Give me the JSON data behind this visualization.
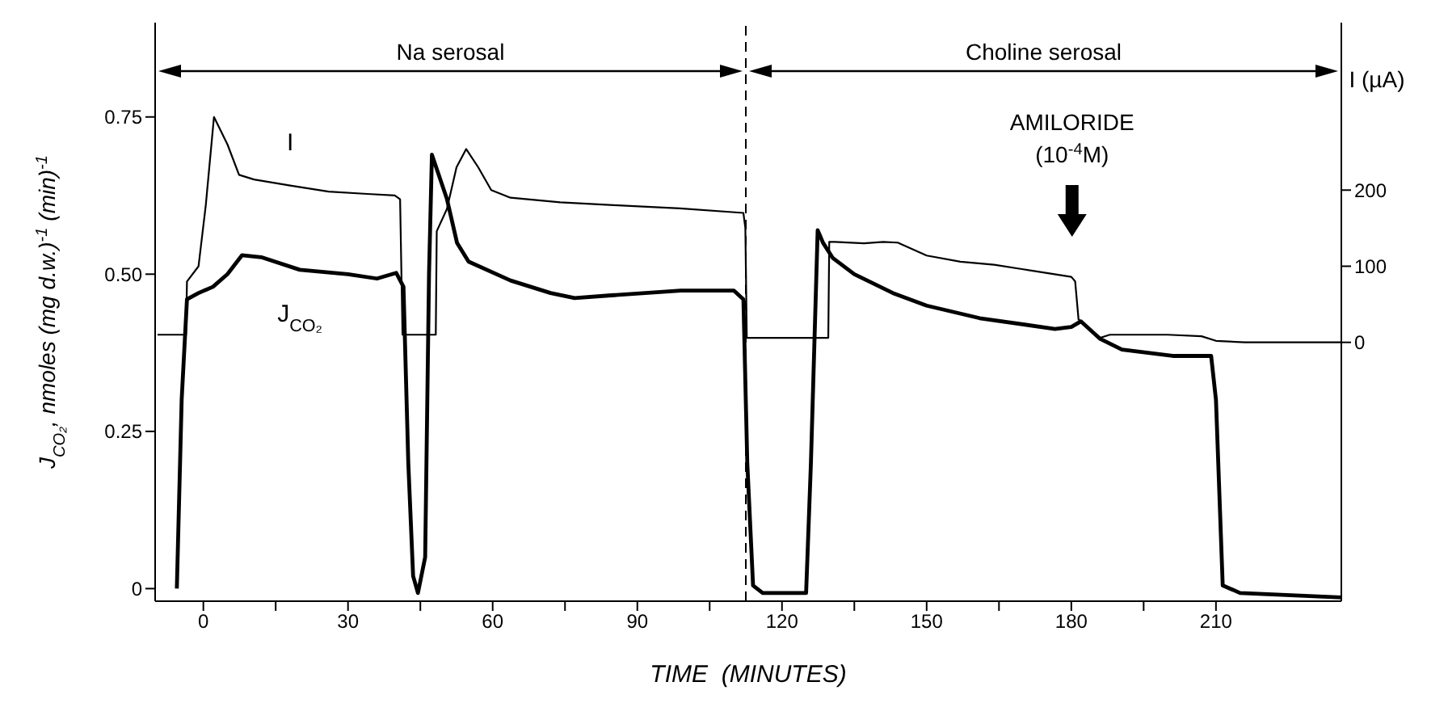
{
  "chart_data": {
    "type": "line",
    "xlabel": "TIME  (MINUTES)",
    "ylabel": "J$_{CO₂}$, nmoles (mg d.w.)$^{-1}$ (min)$^{-1}$",
    "y2label": "I (µA)",
    "xlim": [
      -10,
      236
    ],
    "xticks": [
      0,
      {
        "value": 15,
        "label": null
      },
      30,
      {
        "value": 45,
        "label": null
      },
      60,
      {
        "value": 75,
        "label": null
      },
      90,
      {
        "value": 105,
        "label": null
      },
      120,
      {
        "value": 135,
        "label": null
      },
      150,
      {
        "value": 165,
        "label": null
      },
      180,
      {
        "value": 195,
        "label": null
      },
      210
    ],
    "ylim": [
      -0.02,
      0.9
    ],
    "yticks": [
      0,
      0.25,
      {
        "value": 0.5,
        "label": "0.50"
      },
      0.75
    ],
    "y2lim": [
      -340,
      420
    ],
    "y2ticks": [
      0,
      100,
      200
    ],
    "grid": false,
    "legend": false,
    "marker": "none",
    "line_style": "solid",
    "series": [
      {
        "name": "I",
        "color": "#000000",
        "axis": "y2",
        "x": [
          -9.5,
          -3.6,
          -3.4,
          -1,
          0.5,
          2.2,
          5,
          7.4,
          10.5,
          18,
          26,
          34,
          39.7,
          40.8,
          41.3,
          48.2,
          48.4,
          50.5,
          52.5,
          54.5,
          57,
          59.7,
          63.7,
          74,
          86,
          98.8,
          112,
          112.4,
          112.7,
          129.6,
          129.8,
          131,
          137,
          141,
          144,
          150,
          157,
          164,
          170,
          176,
          180,
          180.8,
          181.5,
          186,
          188,
          200,
          207,
          210,
          216,
          236
        ],
        "values": [
          10,
          10,
          80,
          100,
          180,
          296,
          260,
          220,
          214,
          206,
          198,
          195,
          193,
          188,
          10,
          10,
          146,
          175,
          230,
          254,
          230,
          200,
          190,
          184,
          180,
          176,
          170,
          150,
          6,
          6,
          132,
          132,
          130,
          132,
          131,
          114,
          106,
          102,
          96,
          90,
          86,
          80,
          30,
          6,
          10,
          10,
          8,
          2,
          0,
          0
        ]
      },
      {
        "name": "J$_{CO₂}$",
        "color": "#000000",
        "x": [
          -5.5,
          -4.5,
          -3.4,
          -1,
          2,
          5,
          8,
          12,
          20,
          30,
          36,
          40,
          41.5,
          42.5,
          43.5,
          44.5,
          46,
          46.8,
          47.4,
          50.5,
          52.6,
          55,
          63.7,
          72,
          77,
          84,
          99,
          110,
          112,
          112.8,
          114,
          116,
          125,
          126,
          127.4,
          128.5,
          130.5,
          135,
          143,
          150,
          161,
          176.6,
          180,
          182,
          186,
          190.5,
          201,
          209,
          210,
          211.4,
          215,
          236
        ],
        "values": [
          0,
          0.3,
          0.46,
          0.47,
          0.48,
          0.5,
          0.53,
          0.527,
          0.507,
          0.5,
          0.493,
          0.502,
          0.48,
          0.2,
          0.02,
          -0.007,
          0.05,
          0.5,
          0.69,
          0.62,
          0.55,
          0.52,
          0.49,
          0.47,
          0.462,
          0.466,
          0.474,
          0.474,
          0.46,
          0.2,
          0.005,
          -0.007,
          -0.007,
          0.2,
          0.57,
          0.55,
          0.526,
          0.5,
          0.47,
          0.45,
          0.43,
          0.413,
          0.416,
          0.425,
          0.397,
          0.38,
          0.37,
          0.37,
          0.3,
          0.005,
          -0.007,
          -0.014
        ]
      }
    ],
    "ref_lines": [
      {
        "axis": "x",
        "value": 112.5,
        "line_style": "dashed"
      }
    ],
    "annotations": [
      "Na serosal",
      "Choline serosal",
      "AMILORIDE (10$^{-4}$M)"
    ]
  }
}
